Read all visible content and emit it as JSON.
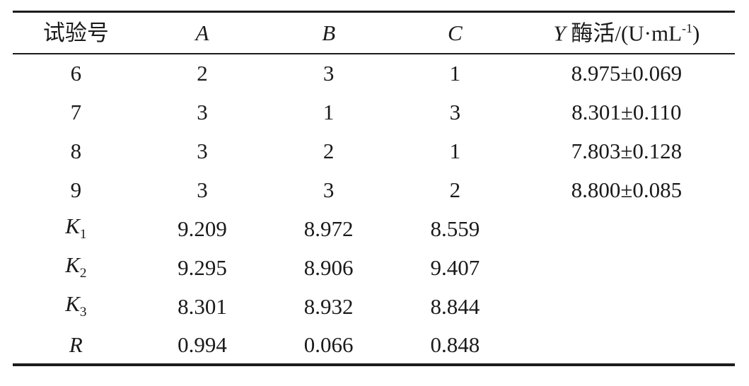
{
  "colors": {
    "text": "#1a1a1a",
    "rule": "#1c1c1c",
    "background": "#ffffff"
  },
  "table": {
    "header": {
      "experiment_no": "试验号",
      "factor_a": "A",
      "factor_b": "B",
      "factor_c": "C",
      "y_prefix": "Y",
      "y_text": " 酶活/(U·mL",
      "y_sup": "-1",
      "y_close": ")"
    },
    "rows": [
      {
        "label": "6",
        "sub": "",
        "a": "2",
        "b": "3",
        "c": "1",
        "y": "8.975±0.069"
      },
      {
        "label": "7",
        "sub": "",
        "a": "3",
        "b": "1",
        "c": "3",
        "y": "8.301±0.110"
      },
      {
        "label": "8",
        "sub": "",
        "a": "3",
        "b": "2",
        "c": "1",
        "y": "7.803±0.128"
      },
      {
        "label": "9",
        "sub": "",
        "a": "3",
        "b": "3",
        "c": "2",
        "y": "8.800±0.085"
      },
      {
        "label": "K",
        "sub": "1",
        "a": "9.209",
        "b": "8.972",
        "c": "8.559",
        "y": ""
      },
      {
        "label": "K",
        "sub": "2",
        "a": "9.295",
        "b": "8.906",
        "c": "9.407",
        "y": ""
      },
      {
        "label": "K",
        "sub": "3",
        "a": "8.301",
        "b": "8.932",
        "c": "8.844",
        "y": ""
      },
      {
        "label": "R",
        "sub": "",
        "a": "0.994",
        "b": "0.066",
        "c": "0.848",
        "y": ""
      }
    ]
  },
  "chart_data": {
    "type": "table",
    "columns": [
      "试验号",
      "A",
      "B",
      "C",
      "Y 酶活/(U·mL-1)"
    ],
    "rows": [
      [
        "6",
        2,
        3,
        1,
        "8.975±0.069"
      ],
      [
        "7",
        3,
        1,
        3,
        "8.301±0.110"
      ],
      [
        "8",
        3,
        2,
        1,
        "7.803±0.128"
      ],
      [
        "9",
        3,
        3,
        2,
        "8.800±0.085"
      ],
      [
        "K1",
        9.209,
        8.972,
        8.559,
        ""
      ],
      [
        "K2",
        9.295,
        8.906,
        9.407,
        ""
      ],
      [
        "K3",
        8.301,
        8.932,
        8.844,
        ""
      ],
      [
        "R",
        0.994,
        0.066,
        0.848,
        ""
      ]
    ]
  }
}
